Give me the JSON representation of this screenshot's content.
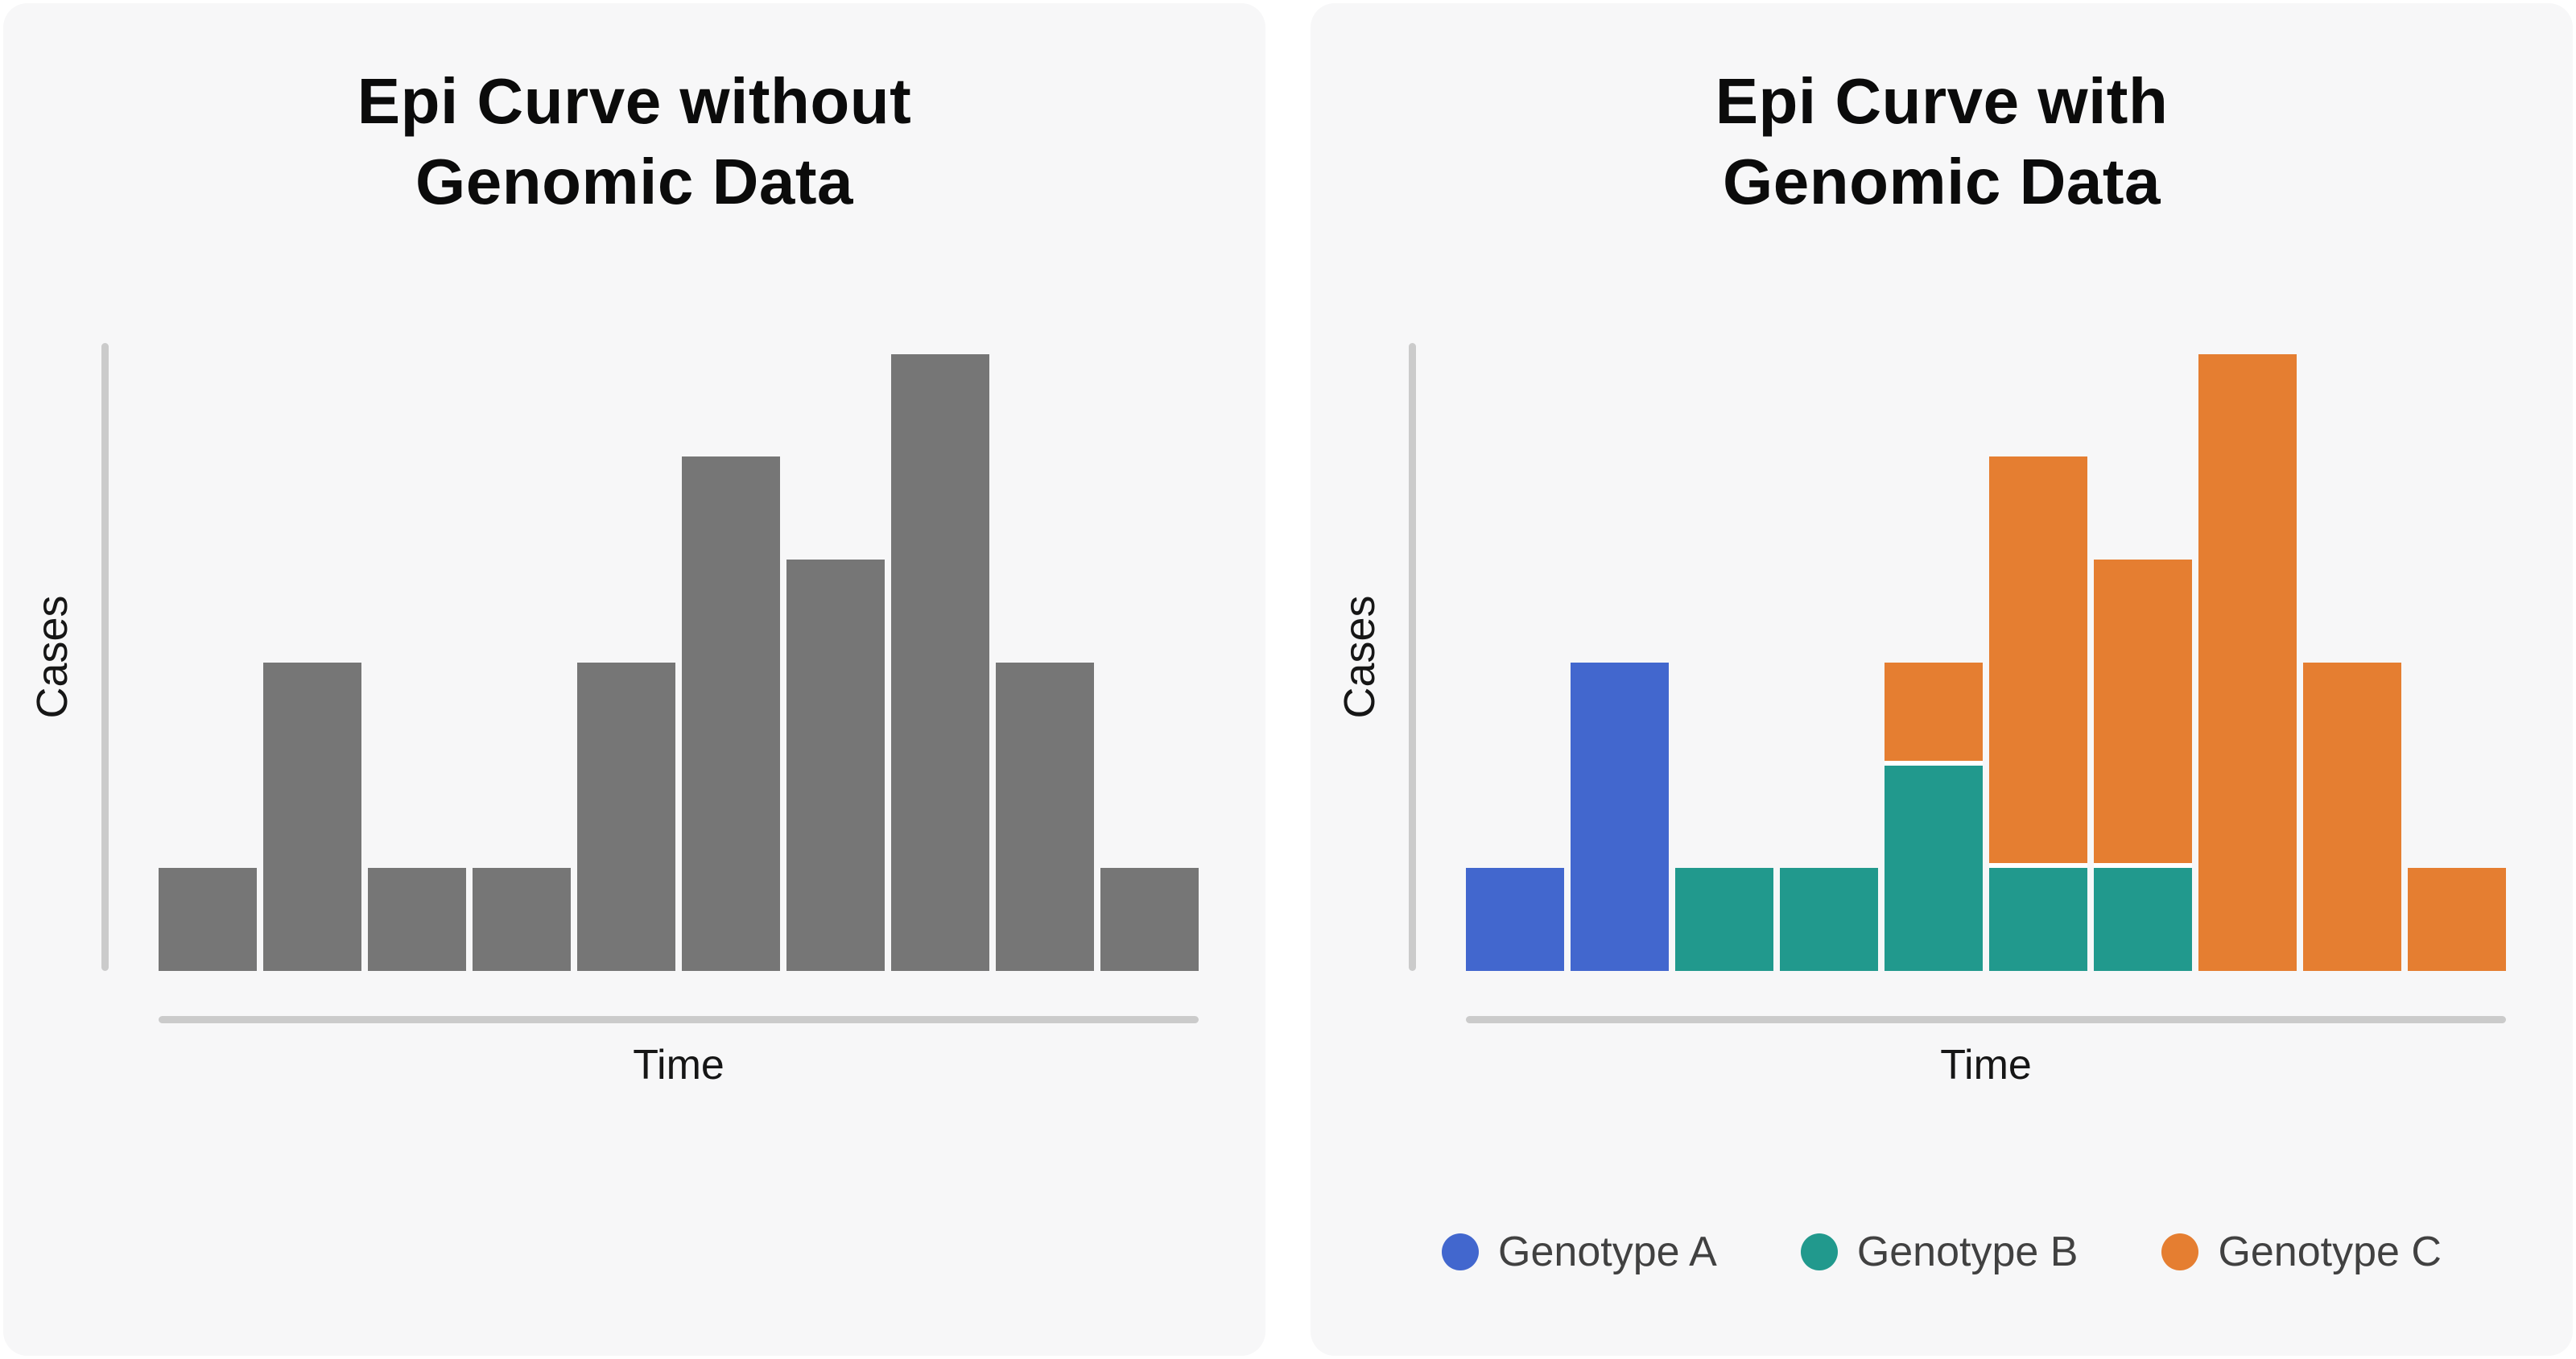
{
  "page": {
    "background": "#ffffff",
    "card_background": "#f7f7f8"
  },
  "colors": {
    "bar_gray": "#767676",
    "genotype_a_blue": "#4267ce",
    "genotype_b_teal": "#21998d",
    "genotype_c_orange": "#e57e31",
    "axis_line": "#cbcbcb",
    "title_text": "#0b0b0b",
    "axis_label_text": "#161616",
    "legend_text": "#414141"
  },
  "chart_data": [
    {
      "type": "bar",
      "stacked": false,
      "title": "Epi Curve without Genomic Data",
      "title_lines": [
        "Epi Curve without",
        "Genomic Data"
      ],
      "xlabel": "Time",
      "ylabel": "Cases",
      "ylim": [
        0,
        6
      ],
      "grid": false,
      "axis_tick_labels": false,
      "series": [
        {
          "name": "Cases",
          "color": "#767676",
          "values": [
            1,
            3,
            1,
            1,
            3,
            5,
            4,
            6,
            3,
            1
          ]
        }
      ]
    },
    {
      "type": "bar",
      "stacked": true,
      "title": "Epi Curve with Genomic Data",
      "title_lines": [
        "Epi Curve with",
        "Genomic Data"
      ],
      "xlabel": "Time",
      "ylabel": "Cases",
      "ylim": [
        0,
        6
      ],
      "grid": false,
      "axis_tick_labels": false,
      "legend_position": "bottom",
      "totals": [
        1,
        3,
        1,
        1,
        3,
        5,
        4,
        6,
        3,
        1
      ],
      "series": [
        {
          "name": "Genotype A",
          "color": "#4267ce",
          "values": [
            1,
            3,
            0,
            0,
            0,
            0,
            0,
            0,
            0,
            0
          ]
        },
        {
          "name": "Genotype B",
          "color": "#21998d",
          "values": [
            0,
            0,
            1,
            1,
            2,
            1,
            1,
            0,
            0,
            0
          ]
        },
        {
          "name": "Genotype C",
          "color": "#e57e31",
          "values": [
            0,
            0,
            0,
            0,
            1,
            4,
            3,
            6,
            3,
            1
          ]
        }
      ],
      "legend": [
        {
          "label": "Genotype A",
          "color": "#4267ce"
        },
        {
          "label": "Genotype B",
          "color": "#21998d"
        },
        {
          "label": "Genotype C",
          "color": "#e57e31"
        }
      ]
    }
  ]
}
